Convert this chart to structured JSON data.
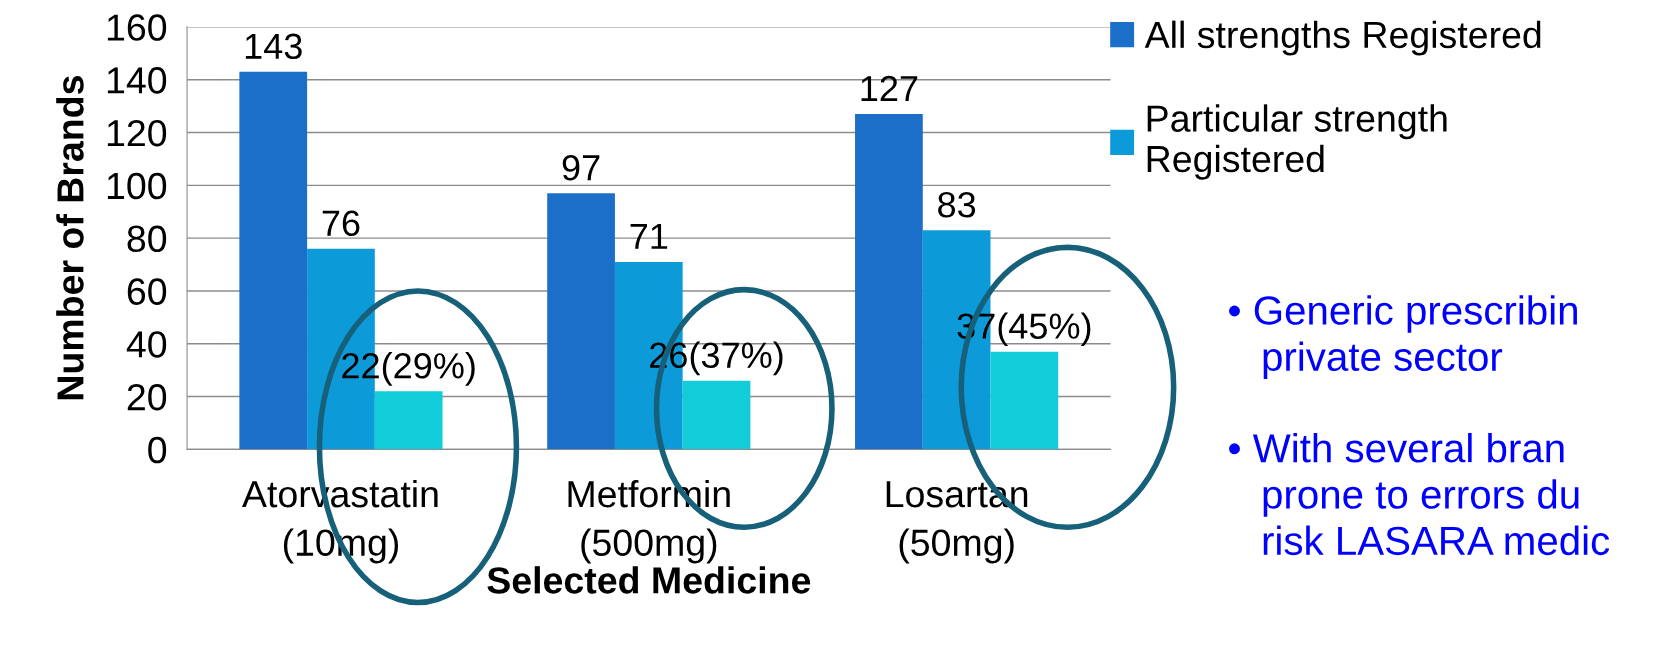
{
  "chart_data": {
    "type": "bar",
    "xlabel": "Selected Medicine",
    "ylabel": "Number of Brands",
    "categories": [
      "Atorvastatin\n(10mg)",
      "Metformin\n(500mg)",
      "Losartan\n(50mg)"
    ],
    "series": [
      {
        "name": "All strengths Registered",
        "color": "#1b6fc8",
        "values": [
          143,
          97,
          127
        ],
        "value_labels": [
          "143",
          "97",
          "127"
        ]
      },
      {
        "name": "Particular strength\nRegistered",
        "color": "#0d9ad8",
        "values": [
          76,
          71,
          83
        ],
        "value_labels": [
          "76",
          "71",
          "83"
        ]
      },
      {
        "color": "#12cdd9",
        "values": [
          22,
          26,
          37
        ],
        "value_labels": [
          "22(29%)",
          "26(37%)",
          "37(45%)"
        ]
      }
    ],
    "ylim": [
      0,
      160
    ],
    "yticks": [
      0,
      20,
      40,
      60,
      80,
      100,
      120,
      140,
      160
    ],
    "grid": "y",
    "legend": "right",
    "annotations": [
      "• Generic prescribin\n   private sector",
      "• With several bran\n   prone to errors du\n   risk LASARA medic"
    ]
  }
}
